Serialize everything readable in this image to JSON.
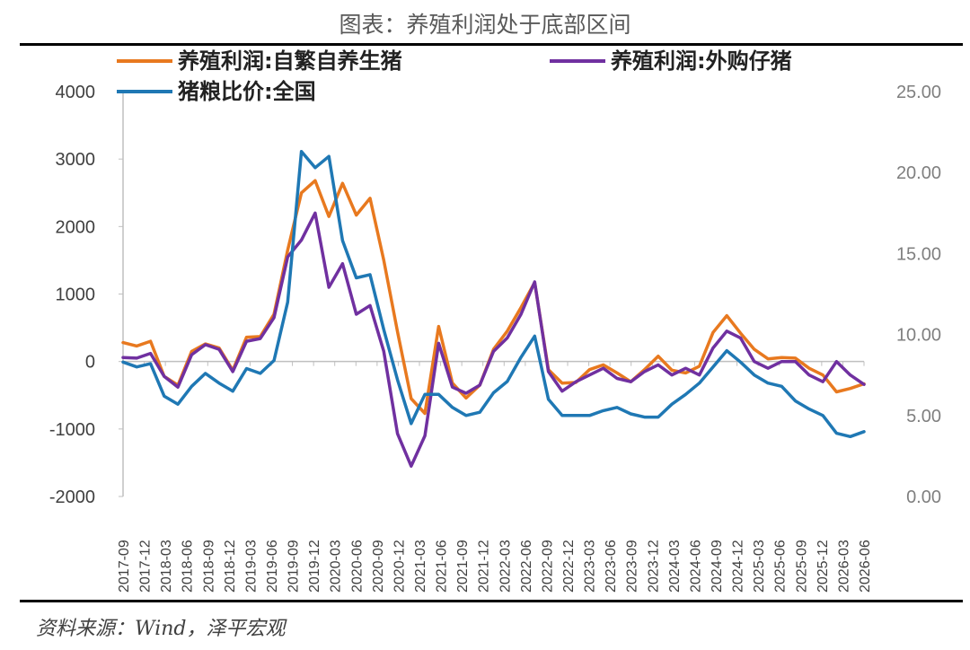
{
  "title": "图表：养殖利润处于底部区间",
  "source": "资料来源：Wind，泽平宏观",
  "chart_data": {
    "type": "line",
    "y_left": {
      "ticks": [
        "4000",
        "3000",
        "2000",
        "1000",
        "0",
        "-1000",
        "-2000"
      ],
      "range": [
        -2000,
        4000
      ]
    },
    "y_right": {
      "ticks": [
        "25.00",
        "20.00",
        "15.00",
        "10.00",
        "5.00",
        "0.00"
      ],
      "range": [
        0,
        25
      ]
    },
    "x_ticks": [
      "2017-09",
      "2017-12",
      "2018-03",
      "2018-06",
      "2018-09",
      "2018-12",
      "2019-03",
      "2019-06",
      "2019-09",
      "2019-12",
      "2020-03",
      "2020-06",
      "2020-09",
      "2020-12",
      "2021-03",
      "2021-06",
      "2021-09",
      "2021-12",
      "2022-03",
      "2022-06",
      "2022-09",
      "2022-12",
      "2023-03",
      "2023-06",
      "2023-09",
      "2023-12",
      "2024-03",
      "2024-06",
      "2024-09",
      "2024-12",
      "2025-03",
      "2025-06",
      "2025-09",
      "2025-12",
      "2026-03",
      "2026-06"
    ],
    "series": [
      {
        "name": "养殖利润:自繁自养生猪",
        "color": "#E8791F",
        "axis": "left",
        "values": [
          280,
          230,
          300,
          -220,
          -350,
          150,
          260,
          200,
          -130,
          360,
          370,
          700,
          1650,
          2500,
          2680,
          2150,
          2640,
          2170,
          2420,
          1500,
          440,
          -550,
          -770,
          520,
          -320,
          -540,
          -350,
          180,
          450,
          800,
          1170,
          -120,
          -320,
          -310,
          -120,
          -50,
          -170,
          -300,
          -120,
          80,
          -130,
          -170,
          -70,
          430,
          680,
          420,
          180,
          40,
          60,
          50,
          -100,
          -200,
          -450,
          -400,
          -330
        ]
      },
      {
        "name": "养殖利润:外购仔猪",
        "color": "#7030A0",
        "axis": "left",
        "values": [
          60,
          50,
          120,
          -220,
          -380,
          100,
          250,
          180,
          -150,
          300,
          340,
          650,
          1550,
          1800,
          2200,
          1100,
          1450,
          700,
          830,
          150,
          -1070,
          -1550,
          -1100,
          270,
          -380,
          -470,
          -350,
          150,
          350,
          700,
          1180,
          -150,
          -440,
          -300,
          -200,
          -100,
          -250,
          -300,
          -150,
          -50,
          -200,
          -100,
          -200,
          200,
          450,
          350,
          0,
          -100,
          0,
          0,
          -200,
          -300,
          0,
          -200,
          -340
        ]
      },
      {
        "name": "猪粮比价:全国",
        "color": "#1F78B4",
        "axis": "right",
        "values": [
          8.3,
          8.0,
          8.2,
          6.2,
          5.7,
          6.8,
          7.6,
          7.0,
          6.5,
          7.9,
          7.6,
          8.4,
          12.0,
          21.3,
          20.3,
          21.0,
          15.8,
          13.5,
          13.7,
          10.3,
          7.2,
          4.5,
          6.3,
          6.3,
          5.5,
          5.0,
          5.2,
          6.4,
          7.1,
          8.6,
          9.9,
          6.0,
          5.0,
          5.0,
          5.0,
          5.3,
          5.5,
          5.1,
          4.9,
          4.9,
          5.7,
          6.3,
          7.0,
          8.0,
          9.0,
          8.3,
          7.5,
          7.0,
          6.8,
          5.9,
          5.4,
          5.0,
          3.9,
          3.7,
          4.0
        ]
      }
    ]
  }
}
